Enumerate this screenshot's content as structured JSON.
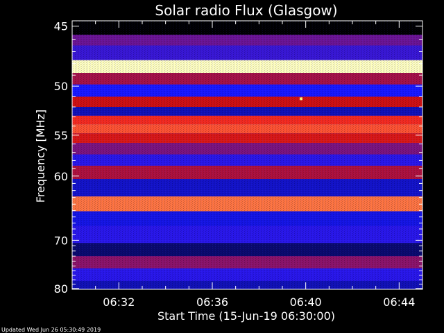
{
  "chart_data": {
    "type": "heatmap",
    "title": "Solar radio Flux (Glasgow)",
    "xlabel": "Start Time (15-Jun-19 06:30:00)",
    "ylabel": "Frequency [MHz]",
    "x_tick_labels": [
      "06:32",
      "06:36",
      "06:40",
      "06:44"
    ],
    "x_ticks_minutes": [
      2,
      6,
      10,
      14
    ],
    "x_range_minutes": [
      0,
      15
    ],
    "y_tick_labels": [
      "45",
      "50",
      "55",
      "60",
      "70",
      "80"
    ],
    "y_ticks_mhz": [
      45,
      50,
      55,
      60,
      70,
      80
    ],
    "y_range_mhz": [
      44.6,
      80.2
    ],
    "y_scale": "reciprocal",
    "colormap": [
      "#000000",
      "#1818ff",
      "#d01010",
      "#ff3020",
      "#ffff80",
      "#ffffff"
    ],
    "frequency_bands": [
      {
        "freq_mhz": 45.3,
        "intensity": 0.0
      },
      {
        "freq_mhz": 46.0,
        "intensity": 0.38
      },
      {
        "freq_mhz": 47.0,
        "intensity": 0.32
      },
      {
        "freq_mhz": 48.4,
        "intensity": 0.95
      },
      {
        "freq_mhz": 49.2,
        "intensity": 0.45
      },
      {
        "freq_mhz": 50.5,
        "intensity": 0.28
      },
      {
        "freq_mhz": 51.5,
        "intensity": 0.5
      },
      {
        "freq_mhz": 52.5,
        "intensity": 0.2
      },
      {
        "freq_mhz": 53.3,
        "intensity": 0.68
      },
      {
        "freq_mhz": 54.3,
        "intensity": 0.75
      },
      {
        "freq_mhz": 55.3,
        "intensity": 0.55
      },
      {
        "freq_mhz": 56.5,
        "intensity": 0.4
      },
      {
        "freq_mhz": 58.0,
        "intensity": 0.3
      },
      {
        "freq_mhz": 59.3,
        "intensity": 0.46
      },
      {
        "freq_mhz": 61.5,
        "intensity": 0.22
      },
      {
        "freq_mhz": 64.2,
        "intensity": 0.78
      },
      {
        "freq_mhz": 66.0,
        "intensity": 0.25
      },
      {
        "freq_mhz": 69.0,
        "intensity": 0.3
      },
      {
        "freq_mhz": 72.0,
        "intensity": 0.12
      },
      {
        "freq_mhz": 74.0,
        "intensity": 0.42
      },
      {
        "freq_mhz": 77.0,
        "intensity": 0.3
      },
      {
        "freq_mhz": 79.5,
        "intensity": 0.2
      }
    ],
    "bursts": [
      {
        "time_min": 9.8,
        "freq_mhz": 51.2,
        "intensity": 0.9
      }
    ]
  },
  "footer": {
    "updated_text": "Updated Wed Jun 26 05:30:49 2019"
  }
}
